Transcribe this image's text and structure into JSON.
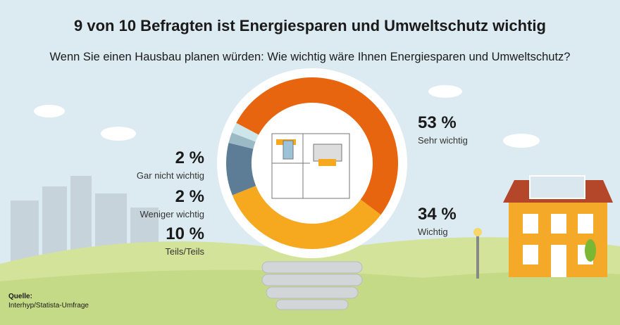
{
  "chart_data": {
    "type": "donut",
    "title": "9 von 10 Befragten ist Energiesparen und Umweltschutz wichtig",
    "subtitle": "Wenn Sie einen Hausbau planen würden: Wie wichtig wäre Ihnen Energiesparen und Umweltschutz?",
    "categories": [
      "Sehr wichtig",
      "Wichtig",
      "Teils/Teils",
      "Weniger wichtig",
      "Gar nicht wichtig"
    ],
    "values": [
      53,
      34,
      10,
      2,
      2
    ],
    "value_labels": [
      "53 %",
      "34 %",
      "10 %",
      "2 %",
      "2 %"
    ],
    "colors": [
      "#e8650f",
      "#f6a81f",
      "#5d7d96",
      "#9cb9c6",
      "#cde6ea"
    ],
    "source_label": "Quelle:",
    "source": "Interhyp/Statista-Umfrage"
  }
}
